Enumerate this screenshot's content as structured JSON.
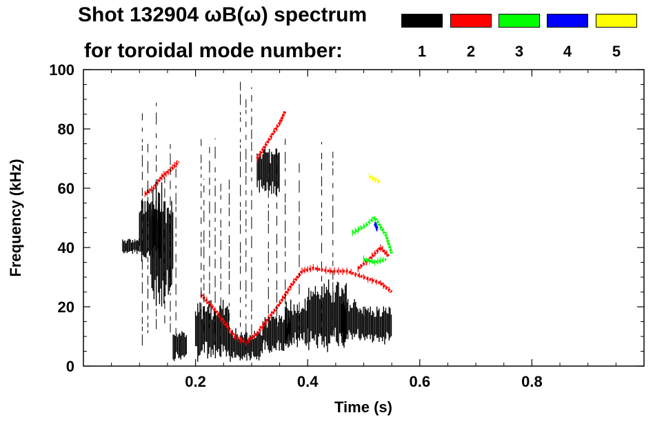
{
  "header": {
    "title_line1": "Shot 132904 ωB(ω) spectrum",
    "title_line2": "for toroidal mode number:"
  },
  "legend": [
    {
      "label": "1",
      "color": "#000000"
    },
    {
      "label": "2",
      "color": "#ff0000"
    },
    {
      "label": "3",
      "color": "#00ff00"
    },
    {
      "label": "4",
      "color": "#0000ff"
    },
    {
      "label": "5",
      "color": "#ffff00"
    }
  ],
  "chart_data": {
    "type": "heatmap",
    "title": "Shot 132904 ωB(ω) spectrum",
    "xlabel": "Time (s)",
    "ylabel": "Frequency (kHz)",
    "xlim": [
      0.0,
      1.0
    ],
    "ylim": [
      0,
      100
    ],
    "x_ticks": [
      0.2,
      0.4,
      0.6,
      0.8
    ],
    "y_ticks": [
      0,
      20,
      40,
      60,
      80,
      100
    ],
    "legend_title": "for toroidal mode number:",
    "series": [
      {
        "name": "1",
        "color": "#000000",
        "blobs": [
          {
            "t0": 0.07,
            "t1": 0.1,
            "f0": 38,
            "f1": 43
          },
          {
            "t0": 0.1,
            "t1": 0.14,
            "f0": 35,
            "f1": 56
          },
          {
            "t0": 0.12,
            "t1": 0.16,
            "f0": 20,
            "f1": 62
          },
          {
            "t0": 0.16,
            "t1": 0.185,
            "f0": 2,
            "f1": 12
          },
          {
            "t0": 0.2,
            "t1": 0.26,
            "f0": 2,
            "f1": 22
          },
          {
            "t0": 0.26,
            "t1": 0.32,
            "f0": 2,
            "f1": 12
          },
          {
            "t0": 0.31,
            "t1": 0.35,
            "f0": 58,
            "f1": 74
          },
          {
            "t0": 0.32,
            "t1": 0.37,
            "f0": 5,
            "f1": 17
          },
          {
            "t0": 0.36,
            "t1": 0.4,
            "f0": 6,
            "f1": 22
          },
          {
            "t0": 0.4,
            "t1": 0.47,
            "f0": 6,
            "f1": 28
          },
          {
            "t0": 0.46,
            "t1": 0.5,
            "f0": 8,
            "f1": 22
          },
          {
            "t0": 0.5,
            "t1": 0.55,
            "f0": 8,
            "f1": 20
          }
        ]
      },
      {
        "name": "2",
        "color": "#ff0000",
        "curves": [
          {
            "points": [
              [
                0.11,
                58
              ],
              [
                0.125,
                60
              ],
              [
                0.14,
                64
              ],
              [
                0.155,
                66
              ],
              [
                0.17,
                69
              ]
            ]
          },
          {
            "points": [
              [
                0.21,
                24
              ],
              [
                0.23,
                20
              ],
              [
                0.25,
                15
              ],
              [
                0.27,
                10
              ],
              [
                0.29,
                8
              ],
              [
                0.31,
                11
              ],
              [
                0.33,
                16
              ],
              [
                0.35,
                21
              ],
              [
                0.37,
                27
              ],
              [
                0.39,
                32
              ],
              [
                0.41,
                33
              ],
              [
                0.44,
                32
              ],
              [
                0.47,
                32
              ],
              [
                0.5,
                30
              ],
              [
                0.53,
                28
              ],
              [
                0.55,
                25
              ]
            ]
          },
          {
            "points": [
              [
                0.31,
                70
              ],
              [
                0.33,
                76
              ],
              [
                0.35,
                82
              ],
              [
                0.36,
                86
              ]
            ]
          },
          {
            "points": [
              [
                0.49,
                33
              ],
              [
                0.51,
                36
              ],
              [
                0.53,
                40
              ],
              [
                0.545,
                37
              ]
            ]
          }
        ]
      },
      {
        "name": "3",
        "color": "#00ff00",
        "curves": [
          {
            "points": [
              [
                0.48,
                45
              ],
              [
                0.5,
                47
              ],
              [
                0.52,
                50
              ],
              [
                0.54,
                44
              ],
              [
                0.55,
                38
              ]
            ]
          },
          {
            "points": [
              [
                0.5,
                36
              ],
              [
                0.52,
                35
              ],
              [
                0.54,
                36
              ]
            ]
          }
        ]
      },
      {
        "name": "4",
        "color": "#0000ff",
        "curves": [
          {
            "points": [
              [
                0.52,
                48
              ],
              [
                0.525,
                46
              ]
            ]
          }
        ]
      },
      {
        "name": "5",
        "color": "#ffff00",
        "curves": [
          {
            "points": [
              [
                0.51,
                64
              ],
              [
                0.53,
                62
              ]
            ]
          }
        ]
      }
    ]
  }
}
